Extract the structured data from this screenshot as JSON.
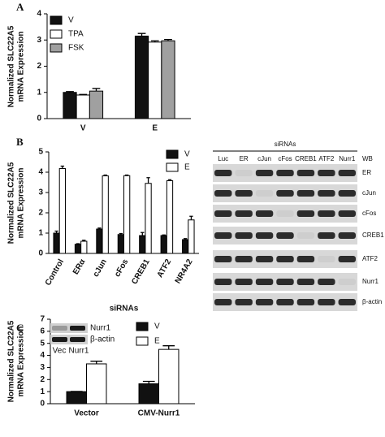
{
  "chart_data": [
    {
      "type": "bar",
      "panel": "A",
      "ylabel": [
        "Normalized SLC22A5",
        "mRNA Expression"
      ],
      "categories": [
        "V",
        "E"
      ],
      "series": [
        {
          "name": "V",
          "color": "#111111",
          "values": [
            1.0,
            3.15
          ],
          "errors": [
            0.03,
            0.1
          ]
        },
        {
          "name": "TPA",
          "color": "#ffffff",
          "values": [
            0.9,
            2.92
          ],
          "errors": [
            0.02,
            0.05
          ]
        },
        {
          "name": "FSK",
          "color": "#a0a0a0",
          "values": [
            1.05,
            2.97
          ],
          "errors": [
            0.1,
            0.05
          ]
        }
      ],
      "ylim": [
        0,
        4
      ],
      "yticks": [
        0,
        1,
        2,
        3,
        4
      ]
    },
    {
      "type": "bar",
      "panel": "B",
      "ylabel": [
        "Normalized SLC22A5",
        "mRNA Expression"
      ],
      "xlabel": "siRNAs",
      "categories": [
        "Control",
        "ERα",
        "cJun",
        "cFos",
        "CREB1",
        "ATF2",
        "NR4A2"
      ],
      "series": [
        {
          "name": "V",
          "color": "#111111",
          "values": [
            1.0,
            0.45,
            1.2,
            0.93,
            0.88,
            0.88,
            0.68
          ],
          "errors": [
            0.1,
            0.03,
            0.05,
            0.05,
            0.15,
            0.03,
            0.05
          ]
        },
        {
          "name": "E",
          "color": "#ffffff",
          "values": [
            4.18,
            0.6,
            3.82,
            3.83,
            3.45,
            3.58,
            1.65
          ],
          "errors": [
            0.12,
            0.05,
            0.04,
            0.03,
            0.28,
            0.05,
            0.18
          ]
        }
      ],
      "ylim": [
        0,
        5
      ],
      "yticks": [
        0,
        1,
        2,
        3,
        4,
        5
      ]
    },
    {
      "type": "bar",
      "panel": "C",
      "ylabel": [
        "Normalized SLC22A5",
        "mRNA Expression"
      ],
      "categories": [
        "Vector",
        "CMV-Nurr1"
      ],
      "series": [
        {
          "name": "V",
          "color": "#111111",
          "values": [
            1.0,
            1.65
          ],
          "errors": [
            0.02,
            0.2
          ]
        },
        {
          "name": "E",
          "color": "#ffffff",
          "values": [
            3.3,
            4.5
          ],
          "errors": [
            0.22,
            0.3
          ]
        }
      ],
      "ylim": [
        0,
        7
      ],
      "yticks": [
        0,
        1,
        2,
        3,
        4,
        5,
        6,
        7
      ]
    }
  ],
  "blot": {
    "header": "siRNAs",
    "lanes": [
      "Luc",
      "ER",
      "cJun",
      "cFos",
      "CREB1",
      "ATF2",
      "Nurr1"
    ],
    "wb": "WB",
    "rows": [
      "ER",
      "cJun",
      "cFos",
      "CREB1",
      "ATF2",
      "Nurr1",
      "β-actin"
    ]
  },
  "inset": {
    "rows": [
      "Nurr1",
      "β-actin"
    ],
    "lanes": [
      "Vec",
      "Nurr1"
    ]
  }
}
